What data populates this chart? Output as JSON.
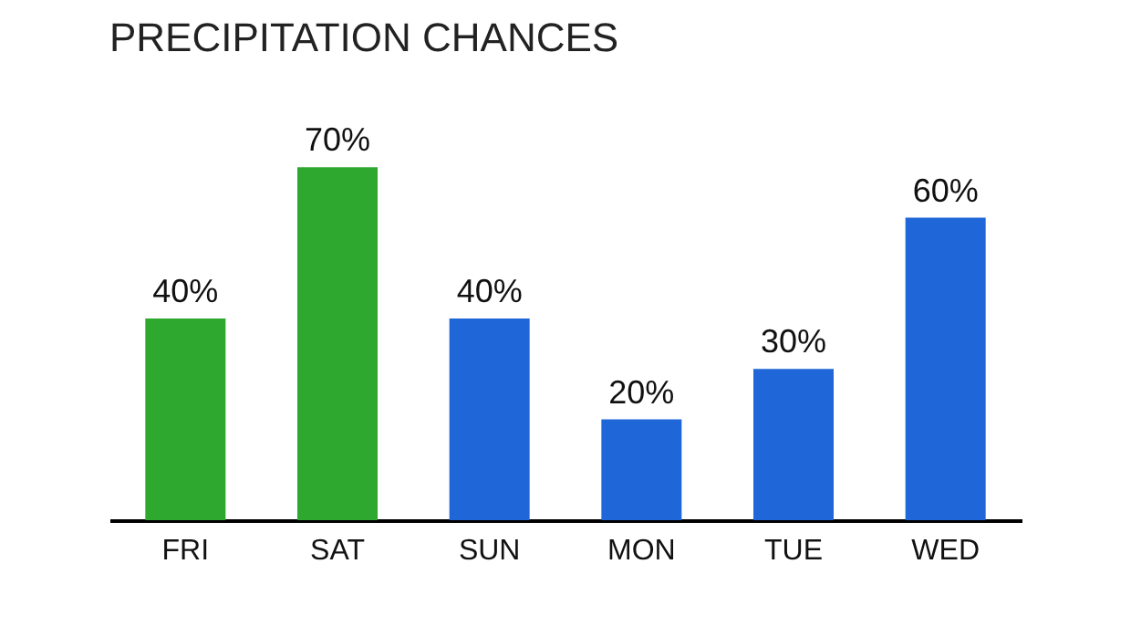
{
  "chart_data": {
    "type": "bar",
    "title": "PRECIPITATION CHANCES",
    "categories": [
      "FRI",
      "SAT",
      "SUN",
      "MON",
      "TUE",
      "WED"
    ],
    "values": [
      40,
      70,
      40,
      20,
      30,
      60
    ],
    "colors": [
      "#2fa82f",
      "#2fa82f",
      "#1f66d8",
      "#1f66d8",
      "#1f66d8",
      "#1f66d8"
    ],
    "data_labels": true,
    "value_labels": [
      "40%",
      "70%",
      "40%",
      "20%",
      "30%",
      "60%"
    ]
  }
}
